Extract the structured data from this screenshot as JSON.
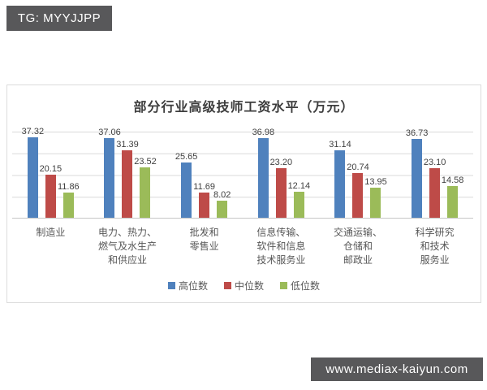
{
  "banners": {
    "top": "TG: MYYJJPP",
    "bottom": "www.mediax-kaiyun.com",
    "background": "#58585a"
  },
  "chart_data": {
    "type": "bar",
    "title": "部分行业高级技师工资水平（万元）",
    "categories": [
      "制造业",
      "电力、热力、燃气及水生产和供应业",
      "批发和零售业",
      "信息传输、软件和信息技术服务业",
      "交通运输、仓储和邮政业",
      "科学研究和技术服务业"
    ],
    "category_lines": [
      [
        "制造业"
      ],
      [
        "电力、热力、",
        "燃气及水生产",
        "和供应业"
      ],
      [
        "批发和",
        "零售业"
      ],
      [
        "信息传输、",
        "软件和信息",
        "技术服务业"
      ],
      [
        "交通运输、",
        "仓储和",
        "邮政业"
      ],
      [
        "科学研究",
        "和技术",
        "服务业"
      ]
    ],
    "series": [
      {
        "name": "高位数",
        "color": "#4F81BD",
        "values": [
          37.32,
          37.06,
          25.65,
          36.98,
          31.14,
          36.73
        ],
        "value_labels": [
          "37.32",
          "37.06",
          "25.65",
          "36.98",
          "31.14",
          "36.73"
        ]
      },
      {
        "name": "中位数",
        "color": "#BE4B48",
        "values": [
          20.15,
          31.39,
          11.69,
          23.2,
          20.74,
          23.1
        ],
        "value_labels": [
          "20.15",
          "31.39",
          "11.69",
          "23.20",
          "20.74",
          "23.10"
        ]
      },
      {
        "name": "低位数",
        "color": "#9BBB59",
        "values": [
          11.86,
          23.52,
          8.02,
          12.14,
          13.95,
          14.58
        ],
        "value_labels": [
          "11.86",
          "23.52",
          "8.02",
          "12.14",
          "13.95",
          "14.58"
        ]
      }
    ],
    "ylim": [
      0,
      40
    ],
    "gridline_step": 10,
    "grid": true,
    "legend_position": "bottom",
    "value_labels_shown": true,
    "gridline_color": "#d9d9d9"
  }
}
